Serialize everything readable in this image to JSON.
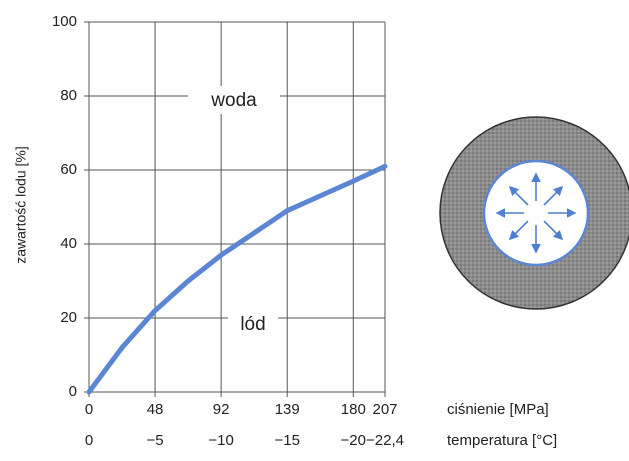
{
  "chart_data": {
    "type": "line",
    "y_label": "zawartość lodu [%]",
    "x_label": "temperatura [°C]",
    "x2_label": "ciśnienie [MPa]",
    "annotations": [
      "woda",
      "lód"
    ],
    "x": [
      0,
      -2.5,
      -5,
      -7.5,
      -10,
      -12.5,
      -15,
      -17.5,
      -20,
      -22.4
    ],
    "series": [
      {
        "color": "#5b86d3",
        "values": [
          0,
          12,
          22,
          30,
          37,
          43,
          49,
          53,
          57,
          61
        ]
      }
    ],
    "xlim": [
      0,
      -22.4
    ],
    "xticks": [
      0,
      {
        "value": -5,
        "label": "−5"
      },
      {
        "value": -10,
        "label": "−10"
      },
      {
        "value": -15,
        "label": "−15"
      },
      {
        "value": -20,
        "label": "−20"
      },
      {
        "value": -22.4,
        "label": "−22,4"
      }
    ],
    "x2ticks": [
      0,
      48,
      92,
      139,
      180,
      207
    ],
    "ylim": [
      0,
      100
    ],
    "yticks": [
      0,
      20,
      40,
      60,
      80,
      100
    ],
    "grid": true
  }
}
